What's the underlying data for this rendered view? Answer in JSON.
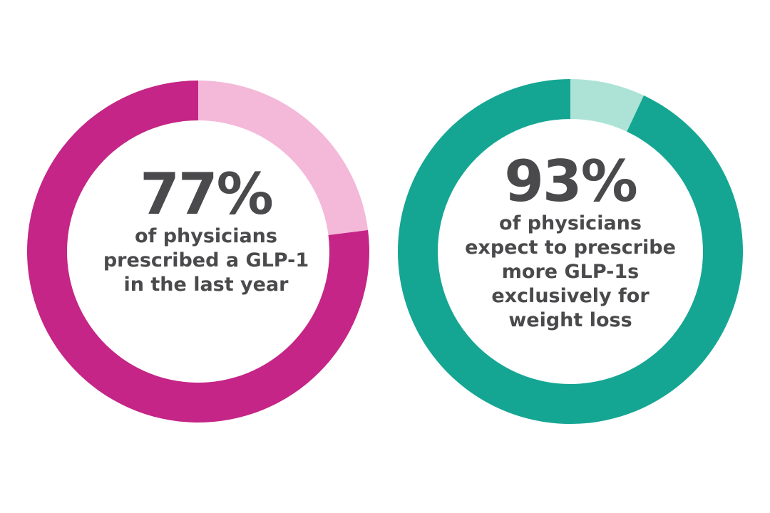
{
  "chart_data": [
    {
      "type": "pie",
      "value_label": "77%",
      "lines": [
        "of physicians",
        "prescribed a GLP-1",
        "in the last year"
      ],
      "values": [
        77,
        23
      ],
      "colors": [
        "#c42586",
        "#f4b8d9"
      ]
    },
    {
      "type": "pie",
      "value_label": "93%",
      "lines": [
        "of physicians",
        "expect to prescribe",
        "more GLP-1s",
        "exclusively for",
        "weight loss"
      ],
      "values": [
        93,
        7
      ],
      "colors": [
        "#15a693",
        "#ade3d7"
      ]
    }
  ]
}
